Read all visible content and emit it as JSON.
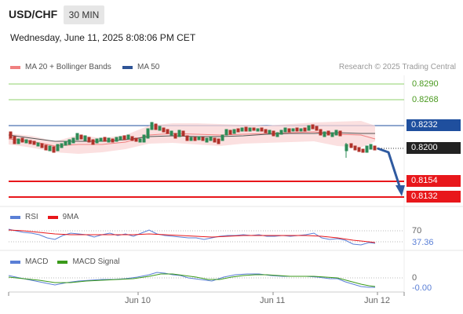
{
  "header": {
    "symbol": "USD/CHF",
    "timeframe": "30 MIN",
    "datetime": "Wednesday, June 11, 2025 8:08:06 PM CET"
  },
  "legend": {
    "ma20_label": "MA 20 + Bollinger Bands",
    "ma50_label": "MA 50",
    "credit": "Research © 2025 Trading Central"
  },
  "levels": {
    "r2": "0.8290",
    "r1": "0.8268",
    "pivot": "0.8232",
    "last": "0.8200",
    "s1": "0.8154",
    "s2": "0.8132"
  },
  "rsi": {
    "label": "RSI",
    "ma_label": "9MA",
    "level": "70",
    "value": "37.36"
  },
  "macd": {
    "label": "MACD",
    "signal_label": "MACD Signal",
    "level": "0",
    "value": "-0.00"
  },
  "xaxis": {
    "ticks": [
      "Jun 10",
      "Jun 11",
      "Jun 12"
    ]
  },
  "colors": {
    "resistance": "#8fd16b",
    "pivot": "#1f4f9e",
    "support": "#e8171b",
    "price_box": "#222222",
    "ma20": "#f08080",
    "ma50": "#2f5597",
    "rsi_line": "#5a7fd6",
    "macd_signal": "#3a9a1a",
    "arrow": "#2f5aa0"
  }
}
